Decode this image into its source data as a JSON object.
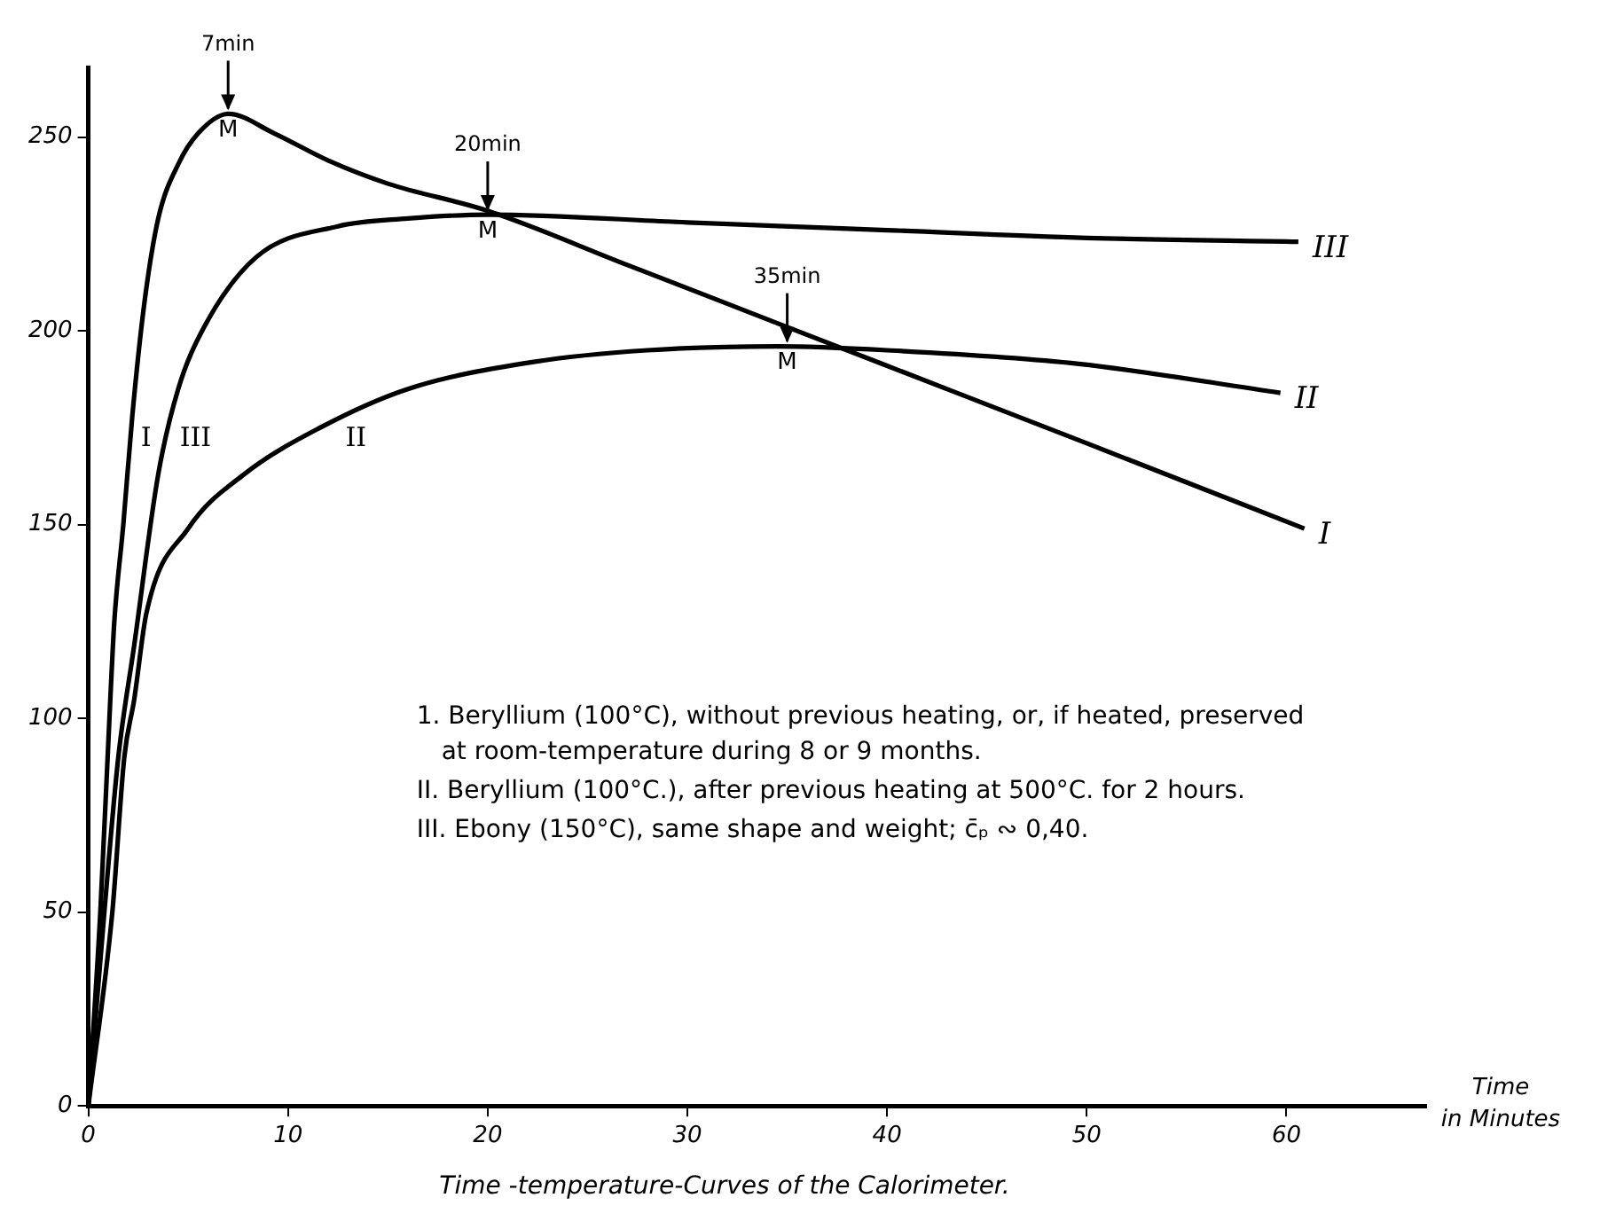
{
  "chart_data": {
    "type": "line",
    "title": "Time -temperature-Curves of the Calorimeter.",
    "xlabel": "Time in Minutes",
    "xlim": [
      0,
      67
    ],
    "ylim": [
      0,
      268
    ],
    "xticks": [
      0,
      10,
      20,
      30,
      40,
      50,
      60
    ],
    "yticks": [
      0,
      50,
      100,
      150,
      200,
      250
    ],
    "grid": false,
    "legend": false,
    "marker": "none",
    "line_style": "solid",
    "series": [
      {
        "name": "I",
        "color": "#000000",
        "x": [
          0,
          0.6,
          1.1,
          1.3,
          1.75,
          2.2,
          2.8,
          3.5,
          4.5,
          5.5,
          7,
          9.3,
          12,
          15,
          20,
          27,
          35,
          40,
          50,
          60.9
        ],
        "values": [
          0,
          50,
          105,
          125,
          150,
          178,
          207,
          229,
          243,
          251,
          256,
          251,
          244,
          238,
          231,
          217,
          201,
          191,
          171,
          149
        ]
      },
      {
        "name": "II",
        "color": "#000000",
        "x": [
          0,
          1.2,
          1.8,
          2.3,
          2.9,
          5,
          7.8,
          11.6,
          16,
          22.3,
          28,
          34.5,
          40,
          49.6,
          59.7
        ],
        "values": [
          0,
          50,
          90,
          105,
          127,
          149,
          163,
          175,
          185,
          192,
          195,
          196,
          195,
          191.5,
          184
        ]
      },
      {
        "name": "III",
        "color": "#000000",
        "x": [
          0,
          0.8,
          1.5,
          2.3,
          3.5,
          4.5,
          5.8,
          8.4,
          12.5,
          16,
          20,
          30,
          40,
          50,
          60.6
        ],
        "values": [
          0,
          50,
          90,
          119,
          163,
          185,
          201,
          219,
          227,
          229,
          230,
          228,
          226,
          224,
          223
        ]
      }
    ],
    "annotations": [
      {
        "text": "7min",
        "x": 7,
        "y": 256
      },
      {
        "text": "20min",
        "x": 20,
        "y": 230
      },
      {
        "text": "35min",
        "x": 35,
        "y": 196
      },
      {
        "text": "M",
        "x": 7,
        "y": 256
      },
      {
        "text": "M",
        "x": 20,
        "y": 230
      },
      {
        "text": "M",
        "x": 35,
        "y": 196
      },
      "I",
      "II",
      "III",
      "1. Beryllium (100°C), without previous heating, or, if heated, preserved at room-temperature during 8 or 9 months.",
      "II. Beryllium (100°C.), after previous heating at 500°C. for 2 hours.",
      "III. Ebony (150°C), same shape and weight; c̄ₚ ∾ 0,40."
    ]
  }
}
